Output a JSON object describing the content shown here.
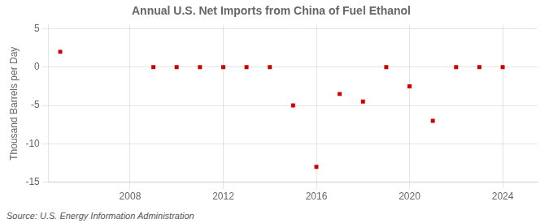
{
  "chart_data": {
    "type": "scatter",
    "title": "Annual U.S. Net Imports from China of Fuel Ethanol",
    "y_label": "Thousand Barrels per Day",
    "annotations": [
      "Source: U.S. Energy Information Administration"
    ],
    "x": [
      2005,
      2009,
      2010,
      2011,
      2012,
      2013,
      2014,
      2015,
      2016,
      2017,
      2018,
      2019,
      2020,
      2021,
      2022,
      2023,
      2024
    ],
    "values": [
      2.0,
      0.0,
      0.0,
      0.0,
      0.0,
      0.0,
      0.0,
      -5.0,
      -13.0,
      -3.5,
      -4.5,
      0.0,
      -2.5,
      -7.0,
      0.0,
      0.0,
      0.0
    ],
    "color": "#cc0000",
    "marker": "square",
    "xlim": [
      2004.5,
      2025.5
    ],
    "xticks": [
      2008,
      2012,
      2016,
      2020,
      2024
    ],
    "ylim": [
      -15,
      5.5
    ],
    "yticks": [
      -15,
      -10,
      -5,
      0,
      5
    ],
    "grid": true
  }
}
